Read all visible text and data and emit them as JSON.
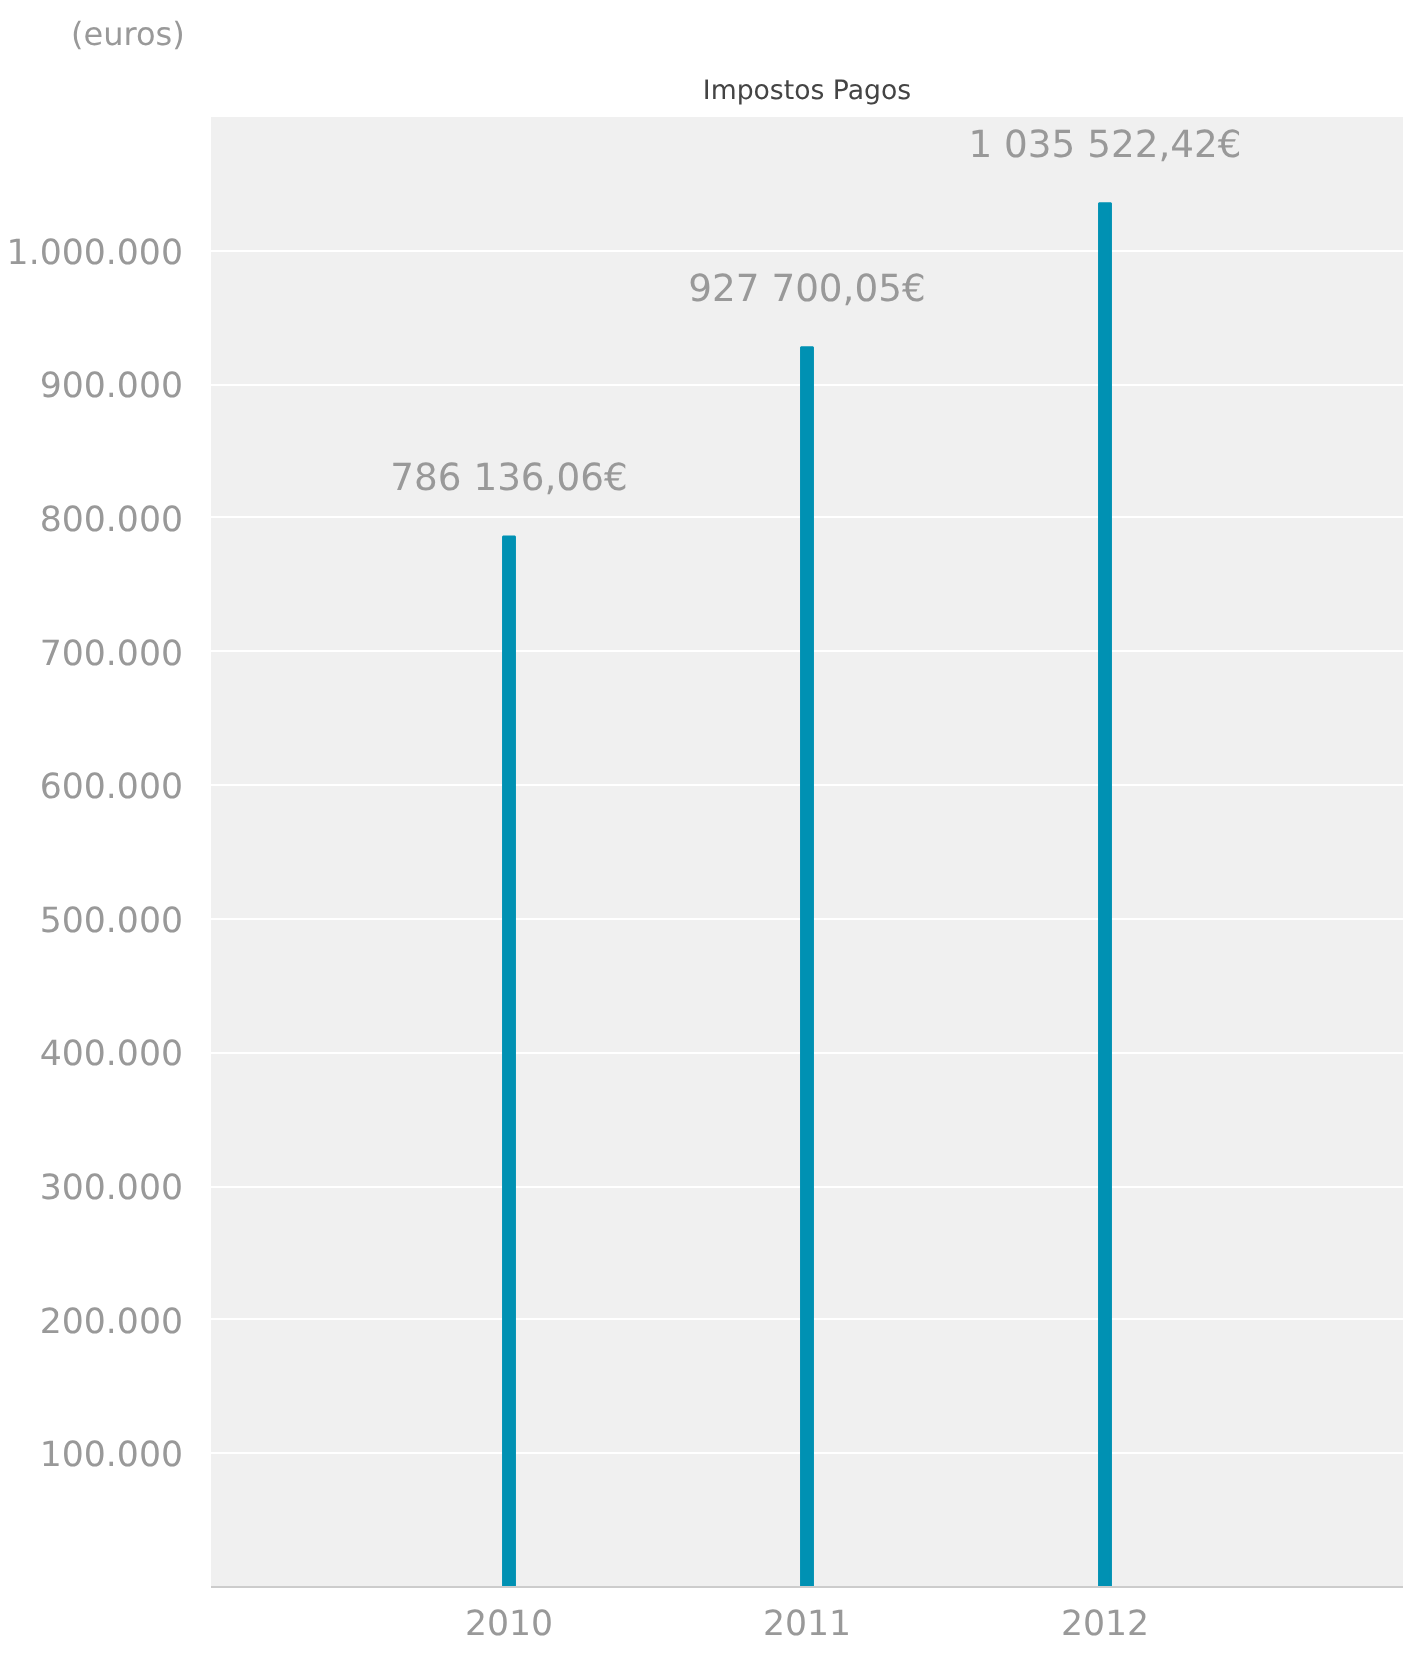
{
  "chart_data": {
    "type": "bar",
    "title": "Impostos Pagos",
    "ylabel": "(euros)",
    "categories": [
      "2010",
      "2011",
      "2012"
    ],
    "values": [
      786136.06,
      927700.05,
      1035522.42
    ],
    "value_labels": [
      "786 136,06€",
      "927 700,05€",
      "1 035 522,42€"
    ],
    "color": "#0091b3",
    "ylim": [
      0,
      1100000
    ],
    "yticks": [
      {
        "value": 100000,
        "label": "100.000"
      },
      {
        "value": 200000,
        "label": "200.000"
      },
      {
        "value": 300000,
        "label": "300.000"
      },
      {
        "value": 400000,
        "label": "400.000"
      },
      {
        "value": 500000,
        "label": "500.000"
      },
      {
        "value": 600000,
        "label": "600.000"
      },
      {
        "value": 700000,
        "label": "700.000"
      },
      {
        "value": 800000,
        "label": "800.000"
      },
      {
        "value": 900000,
        "label": "900.000"
      },
      {
        "value": 1000000,
        "label": "1.000.000"
      }
    ],
    "grid": "y"
  }
}
